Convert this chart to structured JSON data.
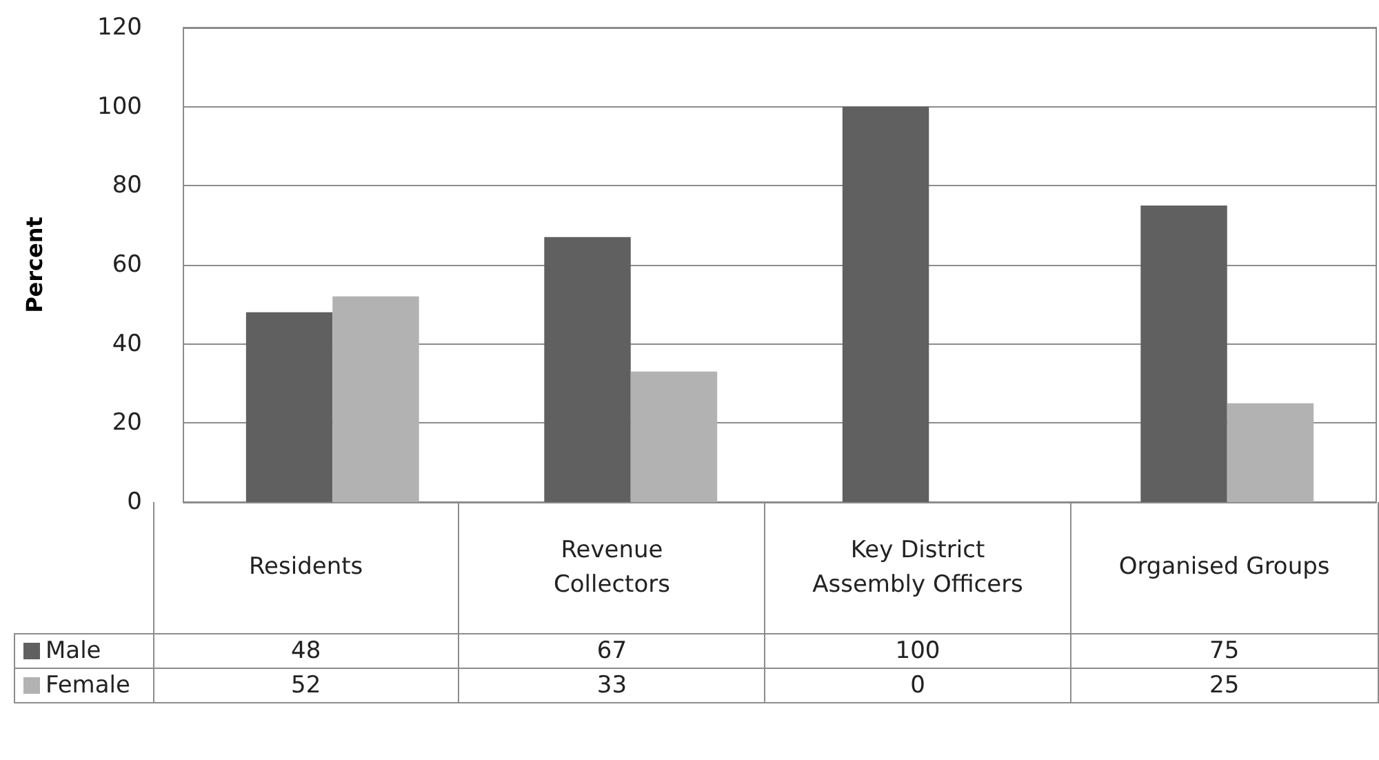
{
  "chart_data": {
    "type": "bar",
    "ylabel": "Percent",
    "categories": [
      "Residents",
      "Revenue Collectors",
      "Key District Assembly Officers",
      "Organised Groups"
    ],
    "series": [
      {
        "name": "Male",
        "color": "#606060",
        "values": [
          48,
          67,
          100,
          75
        ]
      },
      {
        "name": "Female",
        "color": "#b2b2b2",
        "values": [
          52,
          33,
          0,
          25
        ]
      }
    ],
    "ylim": [
      0,
      120
    ],
    "yticks": [
      0,
      20,
      40,
      60,
      80,
      100,
      120
    ],
    "grid": "y",
    "legend": "bottom",
    "data_labels": true
  }
}
